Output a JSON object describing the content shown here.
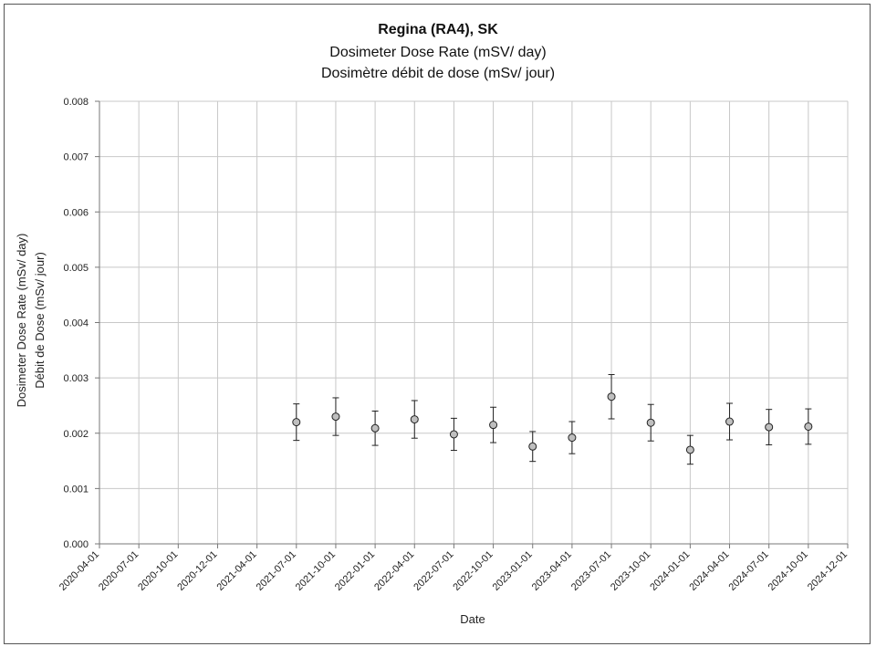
{
  "chart_data": {
    "type": "scatter",
    "title": "Regina (RA4), SK",
    "subtitle": [
      "Dosimeter Dose Rate (mSV/ day)",
      "Dosimètre débit de dose (mSv/ jour)"
    ],
    "xlabel": "Date",
    "ylabel": [
      "Dosimeter Dose Rate (mSv/ day)",
      "Débit de Dose (mSv/ jour)"
    ],
    "xlim": [
      "2020-04-01",
      "2024-12-01"
    ],
    "ylim": [
      0,
      0.008
    ],
    "x_ticks": [
      "2020-04-01",
      "2020-07-01",
      "2020-10-01",
      "2020-12-01",
      "2021-04-01",
      "2021-07-01",
      "2021-10-01",
      "2022-01-01",
      "2022-04-01",
      "2022-07-01",
      "2022-10-01",
      "2023-01-01",
      "2023-04-01",
      "2023-07-01",
      "2023-10-01",
      "2024-01-01",
      "2024-04-01",
      "2024-07-01",
      "2024-10-01",
      "2024-12-01"
    ],
    "y_ticks": [
      "0.000",
      "0.001",
      "0.002",
      "0.003",
      "0.004",
      "0.005",
      "0.006",
      "0.007",
      "0.008"
    ],
    "grid": true,
    "marker_color": "#bfbfbf",
    "marker_edge_color": "#222222",
    "points": [
      {
        "x": "2021-07-01",
        "y": 0.0022,
        "err": 0.00033
      },
      {
        "x": "2021-10-01",
        "y": 0.0023,
        "err": 0.00034
      },
      {
        "x": "2022-01-01",
        "y": 0.00209,
        "err": 0.00031
      },
      {
        "x": "2022-04-01",
        "y": 0.00225,
        "err": 0.00034
      },
      {
        "x": "2022-07-01",
        "y": 0.00198,
        "err": 0.00029
      },
      {
        "x": "2022-10-01",
        "y": 0.00215,
        "err": 0.00032
      },
      {
        "x": "2023-01-01",
        "y": 0.00176,
        "err": 0.00027
      },
      {
        "x": "2023-04-01",
        "y": 0.00192,
        "err": 0.00029
      },
      {
        "x": "2023-07-01",
        "y": 0.00266,
        "err": 0.0004
      },
      {
        "x": "2023-10-01",
        "y": 0.00219,
        "err": 0.00033
      },
      {
        "x": "2024-01-01",
        "y": 0.0017,
        "err": 0.00026
      },
      {
        "x": "2024-04-01",
        "y": 0.00221,
        "err": 0.00033
      },
      {
        "x": "2024-07-01",
        "y": 0.00211,
        "err": 0.00032
      },
      {
        "x": "2024-10-01",
        "y": 0.00212,
        "err": 0.00032
      }
    ]
  }
}
